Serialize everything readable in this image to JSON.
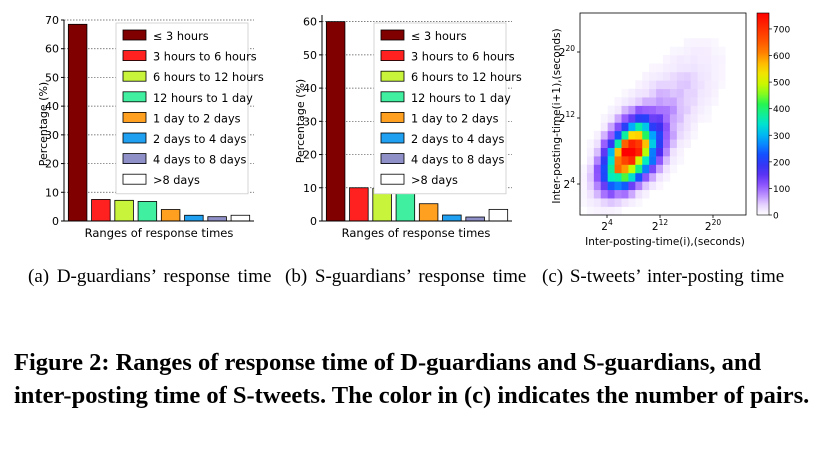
{
  "chart_data": [
    {
      "type": "bar",
      "title": "",
      "xlabel": "Ranges of response times",
      "ylabel": "Percentage (%)",
      "ylim": [
        0,
        70
      ],
      "yticks": [
        0,
        10,
        20,
        30,
        40,
        50,
        60,
        70
      ],
      "grid": true,
      "legend_position": "top-right",
      "categories": [
        "≤ 3 hours",
        "3 hours to 6 hours",
        "6 hours to 12 hours",
        "12 hours to 1 day",
        "1 day to 2 days",
        "2 days to 4 days",
        "4 days to 8 days",
        ">8 days"
      ],
      "colors": [
        "#800000",
        "#ff2020",
        "#c8f53c",
        "#40f0a0",
        "#ffa020",
        "#20a0f0",
        "#9090c8",
        "#ffffff"
      ],
      "values": [
        68.5,
        7.5,
        7.2,
        6.8,
        4.0,
        2.0,
        1.5,
        2.0
      ]
    },
    {
      "type": "bar",
      "title": "",
      "xlabel": "Ranges of response times",
      "ylabel": "Percentage (%)",
      "ylim": [
        0,
        62
      ],
      "yticks": [
        0,
        10,
        20,
        30,
        40,
        50,
        60
      ],
      "grid": true,
      "legend_position": "top-right",
      "categories": [
        "≤ 3 hours",
        "3 hours to 6 hours",
        "6 hours to 12 hours",
        "12 hours to 1 day",
        "1 day to 2 days",
        "2 days to 4 days",
        "4 days to 8 days",
        ">8 days"
      ],
      "colors": [
        "#800000",
        "#ff2020",
        "#c8f53c",
        "#40f0a0",
        "#ffa020",
        "#20a0f0",
        "#9090c8",
        "#ffffff"
      ],
      "values": [
        60.0,
        10.0,
        9.8,
        8.8,
        5.2,
        1.8,
        1.2,
        3.5
      ]
    },
    {
      "type": "heatmap",
      "title": "",
      "xlabel": "Inter-posting-time(i),(seconds)",
      "ylabel": "Inter-posting-time(i+1),(seconds)",
      "xtick_labels": [
        "2^4",
        "2^12",
        "2^20"
      ],
      "ytick_labels": [
        "2^4",
        "2^12",
        "2^20"
      ],
      "colorbar_ticks": [
        0,
        100,
        200,
        300,
        400,
        500,
        600,
        700
      ],
      "colorbar_range": [
        0,
        760
      ],
      "distribution": {
        "description": "diagonal ridge from small to large inter-posting times, peak count about 750 near (2^8, 2^8)",
        "peak_count": 750
      }
    }
  ],
  "subcaptions": [
    {
      "text": "(a) D-guardians’ response time"
    },
    {
      "text": "(b) S-guardians’ response time"
    },
    {
      "text": "(c) S-tweets’ inter-posting time"
    }
  ],
  "caption": "Figure 2: Ranges of response time of D-guardians and S-guardians, and inter-posting time of S-tweets. The color in (c) indicates the number of pairs."
}
